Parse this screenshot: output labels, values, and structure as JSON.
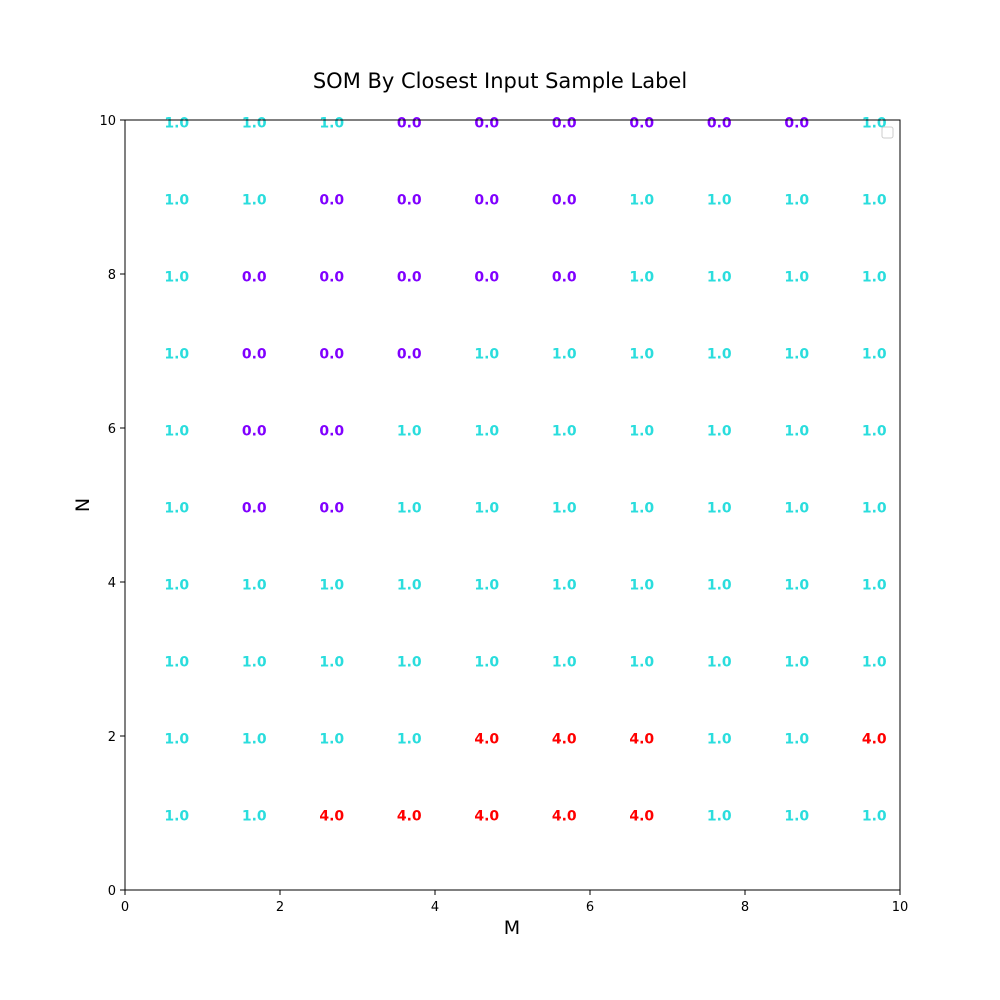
{
  "chart_data": {
    "type": "scatter",
    "title": "SOM By Closest Input Sample Label",
    "xlabel": "M",
    "ylabel": "N",
    "xlim": [
      0,
      10
    ],
    "ylim": [
      0,
      10
    ],
    "xticks": [
      "0",
      "2",
      "4",
      "6",
      "8",
      "10"
    ],
    "yticks": [
      "0",
      "2",
      "4",
      "6",
      "8",
      "10"
    ],
    "grid": false,
    "legend": {
      "placement": "top-right",
      "entries": []
    },
    "label_colors": {
      "0.0": "#8000ff",
      "1.0": "#2adddd",
      "4.0": "#ff0000"
    },
    "columns_x": [
      0.5,
      1.5,
      2.5,
      3.5,
      4.5,
      5.5,
      6.5,
      7.5,
      8.5,
      9.5
    ],
    "rows": [
      {
        "y": 9.5,
        "labels": [
          "1.0",
          "1.0",
          "1.0",
          "0.0",
          "0.0",
          "0.0",
          "0.0",
          "0.0",
          "0.0",
          "1.0"
        ]
      },
      {
        "y": 8.5,
        "labels": [
          "1.0",
          "1.0",
          "0.0",
          "0.0",
          "0.0",
          "0.0",
          "1.0",
          "1.0",
          "1.0",
          "1.0"
        ]
      },
      {
        "y": 7.5,
        "labels": [
          "1.0",
          "0.0",
          "0.0",
          "0.0",
          "0.0",
          "0.0",
          "1.0",
          "1.0",
          "1.0",
          "1.0"
        ]
      },
      {
        "y": 6.5,
        "labels": [
          "1.0",
          "0.0",
          "0.0",
          "0.0",
          "1.0",
          "1.0",
          "1.0",
          "1.0",
          "1.0",
          "1.0"
        ]
      },
      {
        "y": 5.5,
        "labels": [
          "1.0",
          "0.0",
          "0.0",
          "1.0",
          "1.0",
          "1.0",
          "1.0",
          "1.0",
          "1.0",
          "1.0"
        ]
      },
      {
        "y": 4.5,
        "labels": [
          "1.0",
          "0.0",
          "0.0",
          "1.0",
          "1.0",
          "1.0",
          "1.0",
          "1.0",
          "1.0",
          "1.0"
        ]
      },
      {
        "y": 3.5,
        "labels": [
          "1.0",
          "1.0",
          "1.0",
          "1.0",
          "1.0",
          "1.0",
          "1.0",
          "1.0",
          "1.0",
          "1.0"
        ]
      },
      {
        "y": 2.5,
        "labels": [
          "1.0",
          "1.0",
          "1.0",
          "1.0",
          "1.0",
          "1.0",
          "1.0",
          "1.0",
          "1.0",
          "1.0"
        ]
      },
      {
        "y": 1.5,
        "labels": [
          "1.0",
          "1.0",
          "1.0",
          "1.0",
          "4.0",
          "4.0",
          "4.0",
          "1.0",
          "1.0",
          "4.0"
        ]
      },
      {
        "y": 0.5,
        "labels": [
          "1.0",
          "1.0",
          "4.0",
          "4.0",
          "4.0",
          "4.0",
          "4.0",
          "1.0",
          "1.0",
          "1.0"
        ]
      }
    ]
  }
}
